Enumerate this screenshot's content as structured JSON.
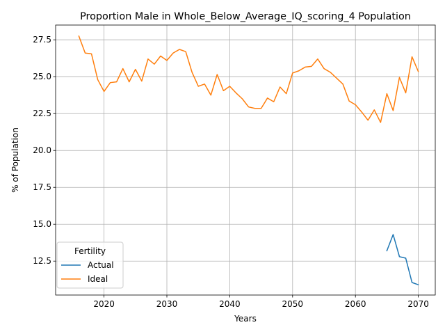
{
  "chart_data": {
    "type": "line",
    "title": "Proportion Male in Whole_Below_Average_IQ_scoring_4 Population",
    "xlabel": "Years",
    "ylabel": "% of Population",
    "xlim": [
      2012.3,
      2072.7
    ],
    "ylim": [
      10.2,
      28.5
    ],
    "xticks": [
      2020,
      2030,
      2040,
      2050,
      2060,
      2070
    ],
    "yticks": [
      12.5,
      15.0,
      17.5,
      20.0,
      22.5,
      25.0,
      27.5
    ],
    "ytick_labels": [
      "12.5",
      "15.0",
      "17.5",
      "20.0",
      "22.5",
      "25.0",
      "27.5"
    ],
    "grid": true,
    "legend": {
      "title": "Fertility",
      "position": "lower-left"
    },
    "series": [
      {
        "name": "Actual",
        "color": "#1f77b4",
        "x": [
          2065,
          2066,
          2067,
          2068,
          2069,
          2070
        ],
        "y": [
          13.2,
          14.3,
          12.8,
          12.7,
          11.05,
          10.9
        ]
      },
      {
        "name": "Ideal",
        "color": "#ff7f0e",
        "x": [
          2016,
          2017,
          2018,
          2019,
          2020,
          2021,
          2022,
          2023,
          2024,
          2025,
          2026,
          2027,
          2028,
          2029,
          2030,
          2031,
          2032,
          2033,
          2034,
          2035,
          2036,
          2037,
          2038,
          2039,
          2040,
          2041,
          2042,
          2043,
          2044,
          2045,
          2046,
          2047,
          2048,
          2049,
          2050,
          2051,
          2052,
          2053,
          2054,
          2055,
          2056,
          2057,
          2058,
          2059,
          2060,
          2061,
          2062,
          2063,
          2064,
          2065,
          2066,
          2067,
          2068,
          2069,
          2070
        ],
        "y": [
          27.75,
          26.6,
          26.55,
          24.8,
          24.0,
          24.6,
          24.65,
          25.55,
          24.65,
          25.5,
          24.7,
          26.2,
          25.85,
          26.4,
          26.1,
          26.6,
          26.85,
          26.7,
          25.3,
          24.35,
          24.5,
          23.75,
          25.15,
          24.05,
          24.35,
          23.9,
          23.5,
          22.95,
          22.85,
          22.85,
          23.55,
          23.3,
          24.3,
          23.85,
          25.25,
          25.4,
          25.65,
          25.7,
          26.2,
          25.55,
          25.3,
          24.9,
          24.5,
          23.35,
          23.1,
          22.6,
          22.05,
          22.75,
          21.9,
          23.85,
          22.7,
          24.95,
          23.9,
          26.35,
          25.35
        ]
      }
    ]
  }
}
